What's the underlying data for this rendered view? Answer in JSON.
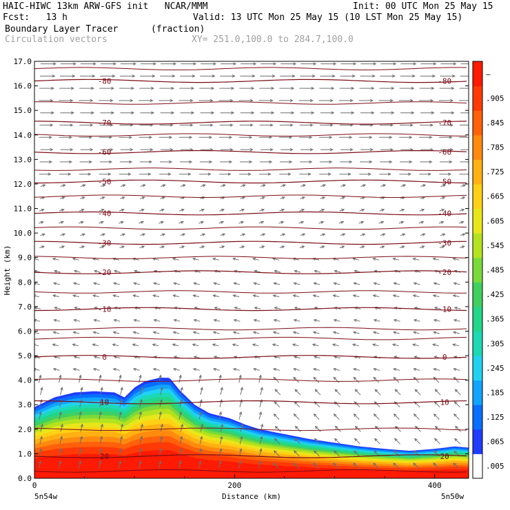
{
  "header": {
    "model_line": "HAIC-HIWC 13km ARW-GFS init   NCAR/MMM",
    "init_line": "Init: 00 UTC Mon 25 May 15",
    "fcst_line": "Fcst:   13 h",
    "valid_line": "Valid: 13 UTC Mon 25 May 15 (10 LST Mon 25 May 15)",
    "field_name": "Boundary Layer Tracer",
    "field_units": "(fraction)",
    "vector_name": "Circulation vectors",
    "xy_line": "XY= 251.0,100.0 to 284.7,100.0"
  },
  "chart_data": {
    "type": "heatmap",
    "xlabel": "Distance (km)",
    "ylabel": "Height (km)",
    "xlim": [
      0,
      434
    ],
    "ylim": [
      0,
      17
    ],
    "x_ticks": [
      "0",
      "200",
      "400"
    ],
    "x_tick_values": [
      0,
      200,
      400
    ],
    "y_ticks": [
      "0.0",
      "1.0",
      "2.0",
      "3.0",
      "4.0",
      "5.0",
      "6.0",
      "7.0",
      "8.0",
      "9.0",
      "10.0",
      "11.0",
      "12.0",
      "13.0",
      "14.0",
      "15.0",
      "16.0",
      "17.0"
    ],
    "x_end_labels": [
      "5n54w",
      "5n50w"
    ],
    "colorbar": {
      "labels": [
        ".005",
        ".065",
        ".125",
        ".185",
        ".245",
        ".305",
        ".365",
        ".425",
        ".485",
        ".545",
        ".605",
        ".665",
        ".725",
        ".785",
        ".845",
        ".905",
        "–"
      ],
      "colors": [
        "#ffffff",
        "#1f3cff",
        "#0a6eff",
        "#12a4ff",
        "#20d2f0",
        "#1cd9b4",
        "#22d68a",
        "#40d060",
        "#7ada3a",
        "#b4e21e",
        "#e8e61a",
        "#ffd014",
        "#ffb012",
        "#ff8a0e",
        "#ff600a",
        "#ff3a06",
        "#ff1a04"
      ]
    },
    "tracer_top_km": [
      [
        0,
        2.9
      ],
      [
        10,
        3.1
      ],
      [
        20,
        3.3
      ],
      [
        40,
        3.5
      ],
      [
        60,
        3.55
      ],
      [
        80,
        3.5
      ],
      [
        90,
        3.3
      ],
      [
        100,
        3.7
      ],
      [
        110,
        3.95
      ],
      [
        125,
        4.1
      ],
      [
        135,
        4.1
      ],
      [
        145,
        3.6
      ],
      [
        160,
        3.0
      ],
      [
        175,
        2.65
      ],
      [
        195,
        2.45
      ],
      [
        210,
        2.2
      ],
      [
        225,
        2.0
      ],
      [
        250,
        1.8
      ],
      [
        275,
        1.6
      ],
      [
        300,
        1.45
      ],
      [
        325,
        1.3
      ],
      [
        350,
        1.2
      ],
      [
        375,
        1.12
      ],
      [
        400,
        1.2
      ],
      [
        420,
        1.3
      ],
      [
        434,
        1.25
      ]
    ],
    "temperature_contours_C": [
      {
        "label": "-80",
        "height_km": 16.2
      },
      {
        "label": "-70",
        "height_km": 14.5
      },
      {
        "label": "-60",
        "height_km": 13.3
      },
      {
        "label": "-50",
        "height_km": 12.1
      },
      {
        "label": "-40",
        "height_km": 10.8
      },
      {
        "label": "-30",
        "height_km": 9.6
      },
      {
        "label": "-20",
        "height_km": 8.4
      },
      {
        "label": "-10",
        "height_km": 6.9
      },
      {
        "label": "0",
        "height_km": 4.95
      },
      {
        "label": "10",
        "height_km": 3.1
      },
      {
        "label": "20",
        "height_km": 0.9
      }
    ]
  }
}
